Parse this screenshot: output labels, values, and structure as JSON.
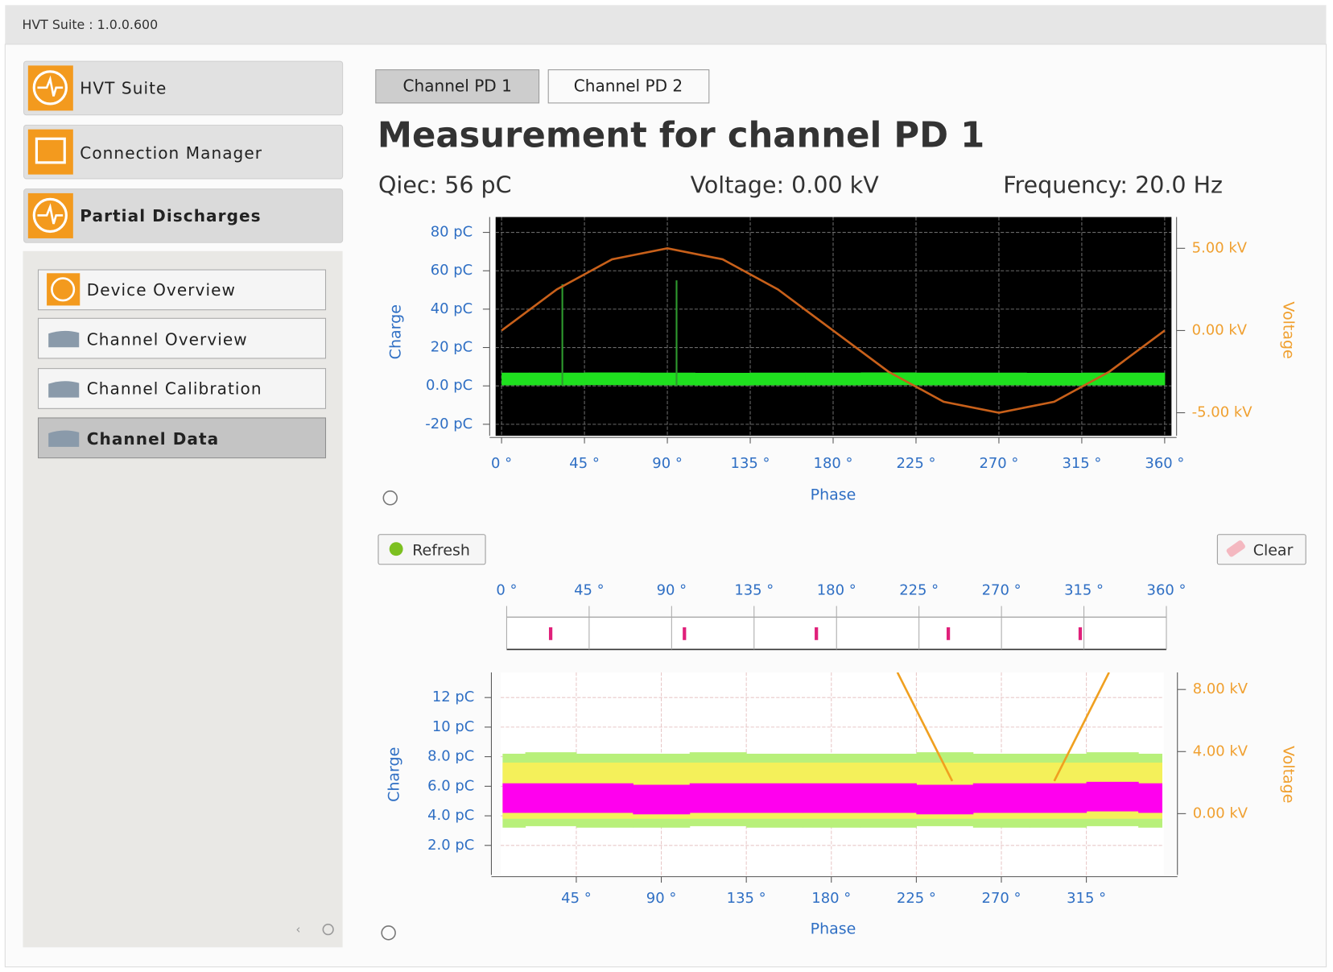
{
  "window": {
    "title": "HVT Suite : 1.0.0.600"
  },
  "sidebar": {
    "items": [
      "HVT Suite",
      "Connection Manager",
      "Partial Discharges"
    ],
    "subitems": [
      "Device Overview",
      "Channel Overview",
      "Channel Calibration",
      "Channel Data"
    ]
  },
  "tabs": [
    "Channel PD 1",
    "Channel PD 2"
  ],
  "heading": "Measurement for channel PD 1",
  "readouts": [
    "Qiec: 56 pC",
    "Voltage: 0.00 kV",
    "Frequency: 20.0 Hz"
  ],
  "buttons": {
    "refresh": "Refresh",
    "clear": "Clear"
  },
  "chart_data": [
    {
      "type": "line",
      "xlabel": "Phase",
      "ylabel": "Charge",
      "y2label": "Voltage",
      "background": "#000000",
      "grid": true,
      "grid_color": "#6a6a6a",
      "xlim": [
        0,
        360
      ],
      "xticks": [
        {
          "value": 0,
          "label": "0 °"
        },
        {
          "value": 45,
          "label": "45 °"
        },
        {
          "value": 90,
          "label": "90 °"
        },
        {
          "value": 135,
          "label": "135 °"
        },
        {
          "value": 180,
          "label": "180 °"
        },
        {
          "value": 225,
          "label": "225 °"
        },
        {
          "value": 270,
          "label": "270 °"
        },
        {
          "value": 315,
          "label": "315 °"
        },
        {
          "value": 360,
          "label": "360 °"
        }
      ],
      "ylim": [
        -26,
        88
      ],
      "yticks": [
        {
          "value": -20,
          "label": "-20 pC"
        },
        {
          "value": 0,
          "label": "0.0 pC"
        },
        {
          "value": 20,
          "label": "20 pC"
        },
        {
          "value": 40,
          "label": "40 pC"
        },
        {
          "value": 60,
          "label": "60 pC"
        },
        {
          "value": 80,
          "label": "80 pC"
        }
      ],
      "y2lim": [
        -6.4,
        6.9
      ],
      "y2ticks": [
        {
          "value": 5,
          "label": "5.00 kV"
        },
        {
          "value": 0,
          "label": "0.00 kV"
        },
        {
          "value": -5,
          "label": "-5.00 kV"
        }
      ],
      "series": [
        {
          "style": "band",
          "color": "#1fe01f",
          "spread": 3.3,
          "x": [
            0,
            30,
            60,
            90,
            120,
            150,
            180,
            210,
            240,
            270,
            300,
            330,
            360
          ],
          "values": [
            3.6,
            3.6,
            3.7,
            3.6,
            3.5,
            3.6,
            3.6,
            3.7,
            3.6,
            3.6,
            3.5,
            3.6,
            3.6
          ]
        },
        {
          "style": "pulses",
          "color": "#2e9a2e",
          "x": [
            33,
            95
          ],
          "values": [
            53,
            55
          ]
        },
        {
          "style": "line",
          "color": "#c8601a",
          "axis": "y2",
          "x": [
            0,
            30,
            60,
            90,
            120,
            150,
            180,
            210,
            240,
            270,
            300,
            330,
            360
          ],
          "values": [
            0,
            2.5,
            4.33,
            5,
            4.33,
            2.5,
            0,
            -2.5,
            -4.33,
            -5,
            -4.33,
            -2.5,
            0
          ]
        }
      ]
    },
    {
      "type": "strip",
      "color": "#e0207a",
      "xlim": [
        0,
        360
      ],
      "xticks": [
        {
          "value": 0,
          "label": "0 °"
        },
        {
          "value": 45,
          "label": "45 °"
        },
        {
          "value": 90,
          "label": "90 °"
        },
        {
          "value": 135,
          "label": "135 °"
        },
        {
          "value": 180,
          "label": "180 °"
        },
        {
          "value": 225,
          "label": "225 °"
        },
        {
          "value": 270,
          "label": "270 °"
        },
        {
          "value": 315,
          "label": "315 °"
        },
        {
          "value": 360,
          "label": "360 °"
        }
      ],
      "x": [
        24,
        97,
        169,
        241,
        313
      ]
    },
    {
      "type": "line",
      "xlabel": "Phase",
      "ylabel": "Charge",
      "y2label": "Voltage",
      "background": "#ffffff",
      "grid": true,
      "grid_color": "#e8c8c8",
      "xlim": [
        5,
        356
      ],
      "xticks": [
        {
          "value": 45,
          "label": "45 °"
        },
        {
          "value": 90,
          "label": "90 °"
        },
        {
          "value": 135,
          "label": "135 °"
        },
        {
          "value": 180,
          "label": "180 °"
        },
        {
          "value": 225,
          "label": "225 °"
        },
        {
          "value": 270,
          "label": "270 °"
        },
        {
          "value": 315,
          "label": "315 °"
        }
      ],
      "ylim": [
        0,
        13.7
      ],
      "yticks": [
        {
          "value": 2,
          "label": "2.0 pC"
        },
        {
          "value": 4,
          "label": "4.0 pC"
        },
        {
          "value": 6,
          "label": "6.0 pC"
        },
        {
          "value": 8,
          "label": "8.0 pC"
        },
        {
          "value": 10,
          "label": "10 pC"
        },
        {
          "value": 12,
          "label": "12 pC"
        }
      ],
      "y2lim": [
        -3.95,
        9.1
      ],
      "y2ticks": [
        {
          "value": 8,
          "label": "8.00 kV"
        },
        {
          "value": 4,
          "label": "4.00 kV"
        },
        {
          "value": 0,
          "label": "0.00 kV"
        }
      ],
      "series": [
        {
          "style": "band",
          "color": "#b8f07a",
          "spread": 2.5,
          "x": [
            6,
            30,
            60,
            90,
            120,
            150,
            180,
            210,
            240,
            270,
            300,
            330,
            355
          ],
          "values": [
            5.7,
            5.8,
            5.7,
            5.7,
            5.8,
            5.7,
            5.7,
            5.7,
            5.8,
            5.7,
            5.7,
            5.8,
            5.7
          ]
        },
        {
          "style": "band",
          "color": "#f4f05a",
          "spread": 1.9,
          "x": [
            6,
            30,
            60,
            90,
            120,
            150,
            180,
            210,
            240,
            270,
            300,
            330,
            355
          ],
          "values": [
            5.7,
            5.7,
            5.7,
            5.7,
            5.7,
            5.7,
            5.7,
            5.7,
            5.7,
            5.7,
            5.7,
            5.7,
            5.7
          ]
        },
        {
          "style": "band",
          "color": "#ff00ee",
          "spread": 1.0,
          "x": [
            6,
            30,
            60,
            90,
            120,
            150,
            180,
            210,
            240,
            270,
            300,
            330,
            355
          ],
          "values": [
            5.2,
            5.2,
            5.2,
            5.1,
            5.2,
            5.2,
            5.2,
            5.2,
            5.1,
            5.2,
            5.2,
            5.3,
            5.2
          ]
        },
        {
          "style": "line",
          "color": "#f0a020",
          "axis": "y2",
          "x": [
            215,
            244,
            271,
            298,
            327
          ],
          "values": [
            9.1,
            2.1,
            null,
            2.1,
            9.1
          ]
        }
      ]
    }
  ]
}
